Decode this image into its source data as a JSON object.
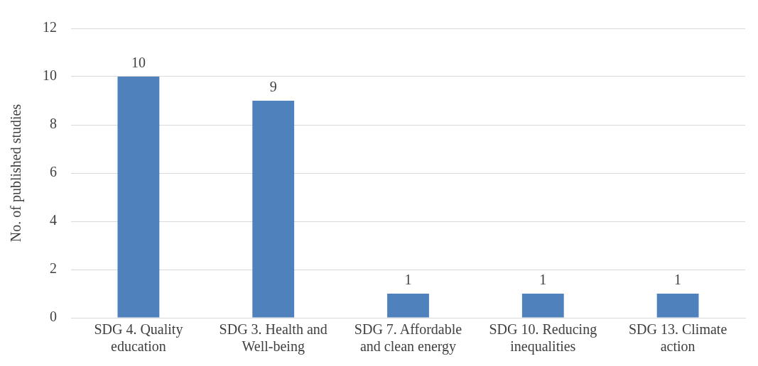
{
  "chart_data": {
    "type": "bar",
    "ylabel": "No. of published studies",
    "categories": [
      "SDG 4. Quality education",
      "SDG 3. Health and Well-being",
      "SDG 7. Affordable and clean energy",
      "SDG 10. Reducing inequalities",
      "SDG 13. Climate action"
    ],
    "values": [
      10,
      9,
      1,
      1,
      1
    ],
    "color": "#4f81bd",
    "ylim": [
      0,
      12
    ],
    "yticks": [
      0,
      2,
      4,
      6,
      8,
      10,
      12
    ],
    "grid": "y",
    "data_labels": true,
    "legend": false
  }
}
